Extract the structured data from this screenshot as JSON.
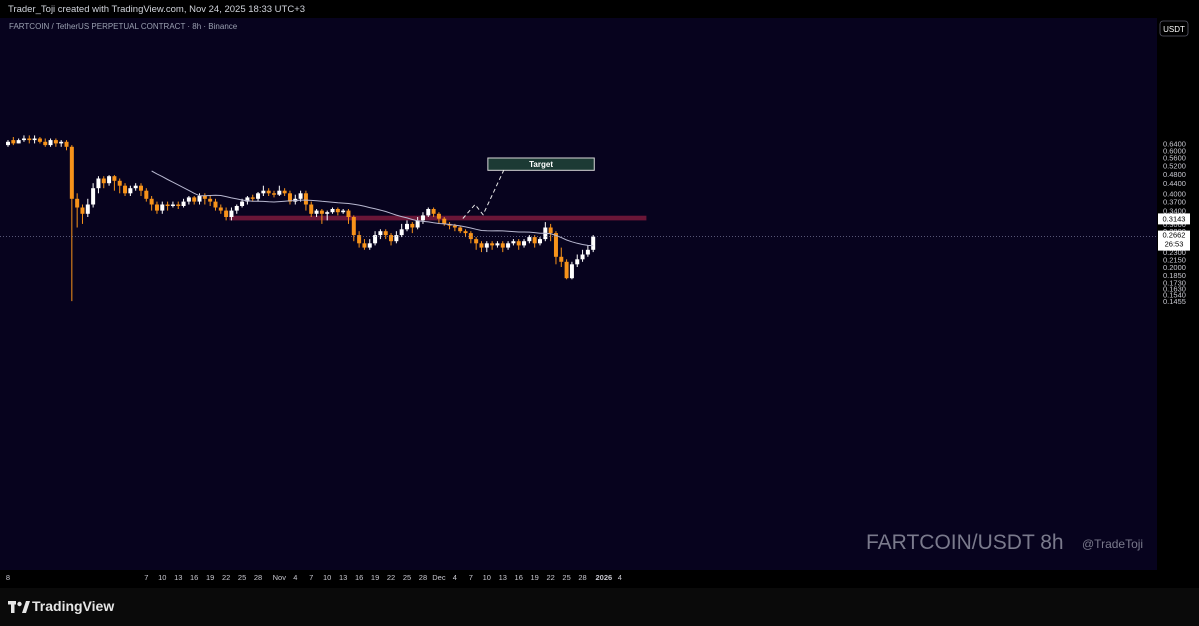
{
  "header": {
    "attribution": "Trader_Toji created with TradingView.com, Nov 24, 2025 18:33 UTC+3",
    "symbol_legend": "FARTCOIN / TetherUS PERPETUAL CONTRACT · 8h · Binance"
  },
  "footer": {
    "brand": "TradingView"
  },
  "colors": {
    "background": "#07031e",
    "bull": "#ffffff",
    "bear": "#f7931a",
    "ma": "#b8b8d0",
    "resistance": "#8c1e40",
    "target_fill": "#1c3a34",
    "target_border": "#d8d8d8",
    "watermark": "#7a7a8c"
  },
  "chart_data": {
    "type": "candlestick",
    "timeframe": "8h",
    "currency": "USDT",
    "price_labels": [
      "0.6400",
      "0.6000",
      "0.5600",
      "0.5200",
      "0.4800",
      "0.4400",
      "0.4000",
      "0.3700",
      "0.3400",
      "0.3100",
      "0.3000",
      "0.2800",
      "0.2600",
      "0.2450",
      "0.2300",
      "0.2150",
      "0.2000",
      "0.1850",
      "0.1730",
      "0.1630",
      "0.1540",
      "0.1455"
    ],
    "time_labels": [
      {
        "label": "8",
        "x": 0
      },
      {
        "label": "7",
        "x": 26
      },
      {
        "label": "10",
        "x": 29
      },
      {
        "label": "13",
        "x": 32
      },
      {
        "label": "16",
        "x": 35
      },
      {
        "label": "19",
        "x": 38
      },
      {
        "label": "22",
        "x": 41
      },
      {
        "label": "25",
        "x": 44
      },
      {
        "label": "28",
        "x": 47
      },
      {
        "label": "Nov",
        "x": 51
      },
      {
        "label": "4",
        "x": 54
      },
      {
        "label": "7",
        "x": 57
      },
      {
        "label": "10",
        "x": 60
      },
      {
        "label": "13",
        "x": 63
      },
      {
        "label": "16",
        "x": 66
      },
      {
        "label": "19",
        "x": 69
      },
      {
        "label": "22",
        "x": 72
      },
      {
        "label": "25",
        "x": 75
      },
      {
        "label": "28",
        "x": 78
      },
      {
        "label": "Dec",
        "x": 81
      },
      {
        "label": "4",
        "x": 84
      },
      {
        "label": "7",
        "x": 87
      },
      {
        "label": "10",
        "x": 90
      },
      {
        "label": "13",
        "x": 93
      },
      {
        "label": "16",
        "x": 96
      },
      {
        "label": "19",
        "x": 99
      },
      {
        "label": "22",
        "x": 102
      },
      {
        "label": "25",
        "x": 105
      },
      {
        "label": "28",
        "x": 108
      },
      {
        "label": "2026",
        "x": 112
      },
      {
        "label": "4",
        "x": 115
      }
    ],
    "y_range": [
      0.142,
      0.7
    ],
    "current_price": "0.2662",
    "countdown": "26:53",
    "ma_last_value": "0.3143",
    "resistance_zone": {
      "low": 0.31,
      "high": 0.324,
      "start_x": 41.6,
      "end_x": 120
    },
    "target_zone": {
      "label": "Target",
      "low": 0.497,
      "high": 0.558,
      "start_x": 90.2,
      "end_x": 110.2
    },
    "projection_path": [
      [
        85.5,
        0.3155
      ],
      [
        87.8,
        0.36
      ],
      [
        89.3,
        0.327
      ],
      [
        93.2,
        0.498
      ]
    ],
    "watermark": {
      "pair": "FARTCOIN/USDT",
      "tf": "8h",
      "handle": "@TradeToji"
    },
    "candles": [
      [
        0.63,
        0.65,
        0.62,
        0.66
      ],
      [
        0.66,
        0.64,
        0.63,
        0.68
      ],
      [
        0.64,
        0.66,
        0.64,
        0.67
      ],
      [
        0.66,
        0.67,
        0.65,
        0.69
      ],
      [
        0.67,
        0.66,
        0.64,
        0.69
      ],
      [
        0.66,
        0.67,
        0.64,
        0.69
      ],
      [
        0.67,
        0.65,
        0.64,
        0.68
      ],
      [
        0.65,
        0.63,
        0.62,
        0.67
      ],
      [
        0.63,
        0.66,
        0.62,
        0.67
      ],
      [
        0.66,
        0.64,
        0.62,
        0.67
      ],
      [
        0.64,
        0.65,
        0.62,
        0.66
      ],
      [
        0.65,
        0.62,
        0.6,
        0.66
      ],
      [
        0.62,
        0.38,
        0.145,
        0.63
      ],
      [
        0.38,
        0.35,
        0.29,
        0.4
      ],
      [
        0.35,
        0.33,
        0.3,
        0.36
      ],
      [
        0.33,
        0.36,
        0.32,
        0.38
      ],
      [
        0.36,
        0.42,
        0.35,
        0.44
      ],
      [
        0.42,
        0.46,
        0.4,
        0.47
      ],
      [
        0.46,
        0.44,
        0.42,
        0.47
      ],
      [
        0.44,
        0.47,
        0.43,
        0.475
      ],
      [
        0.47,
        0.45,
        0.41,
        0.475
      ],
      [
        0.45,
        0.43,
        0.4,
        0.46
      ],
      [
        0.43,
        0.4,
        0.39,
        0.44
      ],
      [
        0.4,
        0.42,
        0.39,
        0.43
      ],
      [
        0.42,
        0.43,
        0.41,
        0.44
      ],
      [
        0.43,
        0.41,
        0.39,
        0.44
      ],
      [
        0.41,
        0.38,
        0.37,
        0.42
      ],
      [
        0.38,
        0.36,
        0.34,
        0.39
      ],
      [
        0.36,
        0.34,
        0.33,
        0.37
      ],
      [
        0.34,
        0.36,
        0.33,
        0.37
      ],
      [
        0.36,
        0.355,
        0.34,
        0.37
      ],
      [
        0.355,
        0.36,
        0.35,
        0.37
      ],
      [
        0.36,
        0.355,
        0.345,
        0.37
      ],
      [
        0.355,
        0.37,
        0.35,
        0.38
      ],
      [
        0.37,
        0.385,
        0.36,
        0.39
      ],
      [
        0.385,
        0.37,
        0.36,
        0.39
      ],
      [
        0.37,
        0.39,
        0.36,
        0.4
      ],
      [
        0.39,
        0.38,
        0.36,
        0.4
      ],
      [
        0.38,
        0.37,
        0.355,
        0.39
      ],
      [
        0.37,
        0.35,
        0.34,
        0.38
      ],
      [
        0.35,
        0.34,
        0.33,
        0.36
      ],
      [
        0.34,
        0.32,
        0.31,
        0.35
      ],
      [
        0.32,
        0.34,
        0.31,
        0.35
      ],
      [
        0.34,
        0.355,
        0.33,
        0.36
      ],
      [
        0.355,
        0.37,
        0.35,
        0.38
      ],
      [
        0.37,
        0.385,
        0.36,
        0.39
      ],
      [
        0.385,
        0.38,
        0.37,
        0.395
      ],
      [
        0.38,
        0.4,
        0.37,
        0.405
      ],
      [
        0.4,
        0.41,
        0.39,
        0.43
      ],
      [
        0.41,
        0.4,
        0.39,
        0.42
      ],
      [
        0.4,
        0.395,
        0.385,
        0.41
      ],
      [
        0.395,
        0.41,
        0.39,
        0.43
      ],
      [
        0.41,
        0.4,
        0.39,
        0.42
      ],
      [
        0.4,
        0.37,
        0.36,
        0.41
      ],
      [
        0.37,
        0.38,
        0.36,
        0.395
      ],
      [
        0.38,
        0.4,
        0.37,
        0.41
      ],
      [
        0.4,
        0.36,
        0.34,
        0.41
      ],
      [
        0.36,
        0.33,
        0.32,
        0.37
      ],
      [
        0.33,
        0.34,
        0.32,
        0.345
      ],
      [
        0.34,
        0.33,
        0.3,
        0.345
      ],
      [
        0.33,
        0.335,
        0.31,
        0.34
      ],
      [
        0.335,
        0.345,
        0.33,
        0.35
      ],
      [
        0.345,
        0.335,
        0.325,
        0.35
      ],
      [
        0.335,
        0.34,
        0.33,
        0.345
      ],
      [
        0.34,
        0.32,
        0.3,
        0.345
      ],
      [
        0.32,
        0.27,
        0.255,
        0.325
      ],
      [
        0.27,
        0.25,
        0.24,
        0.28
      ],
      [
        0.25,
        0.24,
        0.235,
        0.26
      ],
      [
        0.24,
        0.25,
        0.235,
        0.26
      ],
      [
        0.25,
        0.27,
        0.245,
        0.28
      ],
      [
        0.27,
        0.28,
        0.26,
        0.285
      ],
      [
        0.28,
        0.27,
        0.26,
        0.285
      ],
      [
        0.27,
        0.255,
        0.245,
        0.275
      ],
      [
        0.255,
        0.27,
        0.25,
        0.28
      ],
      [
        0.27,
        0.285,
        0.265,
        0.3
      ],
      [
        0.285,
        0.3,
        0.28,
        0.31
      ],
      [
        0.3,
        0.29,
        0.275,
        0.305
      ],
      [
        0.29,
        0.31,
        0.285,
        0.32
      ],
      [
        0.31,
        0.325,
        0.3,
        0.335
      ],
      [
        0.325,
        0.345,
        0.32,
        0.35
      ],
      [
        0.345,
        0.33,
        0.32,
        0.35
      ],
      [
        0.33,
        0.315,
        0.3,
        0.335
      ],
      [
        0.315,
        0.3,
        0.295,
        0.32
      ],
      [
        0.3,
        0.295,
        0.285,
        0.305
      ],
      [
        0.295,
        0.29,
        0.28,
        0.3
      ],
      [
        0.29,
        0.28,
        0.275,
        0.295
      ],
      [
        0.28,
        0.275,
        0.265,
        0.285
      ],
      [
        0.275,
        0.26,
        0.25,
        0.28
      ],
      [
        0.26,
        0.25,
        0.235,
        0.265
      ],
      [
        0.25,
        0.24,
        0.23,
        0.255
      ],
      [
        0.24,
        0.25,
        0.23,
        0.255
      ],
      [
        0.25,
        0.245,
        0.235,
        0.255
      ],
      [
        0.245,
        0.25,
        0.24,
        0.255
      ],
      [
        0.25,
        0.24,
        0.23,
        0.255
      ],
      [
        0.24,
        0.25,
        0.235,
        0.255
      ],
      [
        0.25,
        0.255,
        0.245,
        0.26
      ],
      [
        0.255,
        0.245,
        0.235,
        0.26
      ],
      [
        0.245,
        0.255,
        0.24,
        0.26
      ],
      [
        0.255,
        0.265,
        0.25,
        0.27
      ],
      [
        0.265,
        0.25,
        0.24,
        0.27
      ],
      [
        0.25,
        0.26,
        0.245,
        0.265
      ],
      [
        0.26,
        0.29,
        0.255,
        0.305
      ],
      [
        0.29,
        0.275,
        0.255,
        0.3
      ],
      [
        0.275,
        0.22,
        0.205,
        0.28
      ],
      [
        0.22,
        0.21,
        0.2,
        0.24
      ],
      [
        0.21,
        0.18,
        0.178,
        0.215
      ],
      [
        0.18,
        0.205,
        0.178,
        0.21
      ],
      [
        0.205,
        0.215,
        0.2,
        0.225
      ],
      [
        0.215,
        0.225,
        0.21,
        0.235
      ],
      [
        0.225,
        0.235,
        0.22,
        0.245
      ],
      [
        0.235,
        0.266,
        0.23,
        0.27
      ]
    ]
  }
}
